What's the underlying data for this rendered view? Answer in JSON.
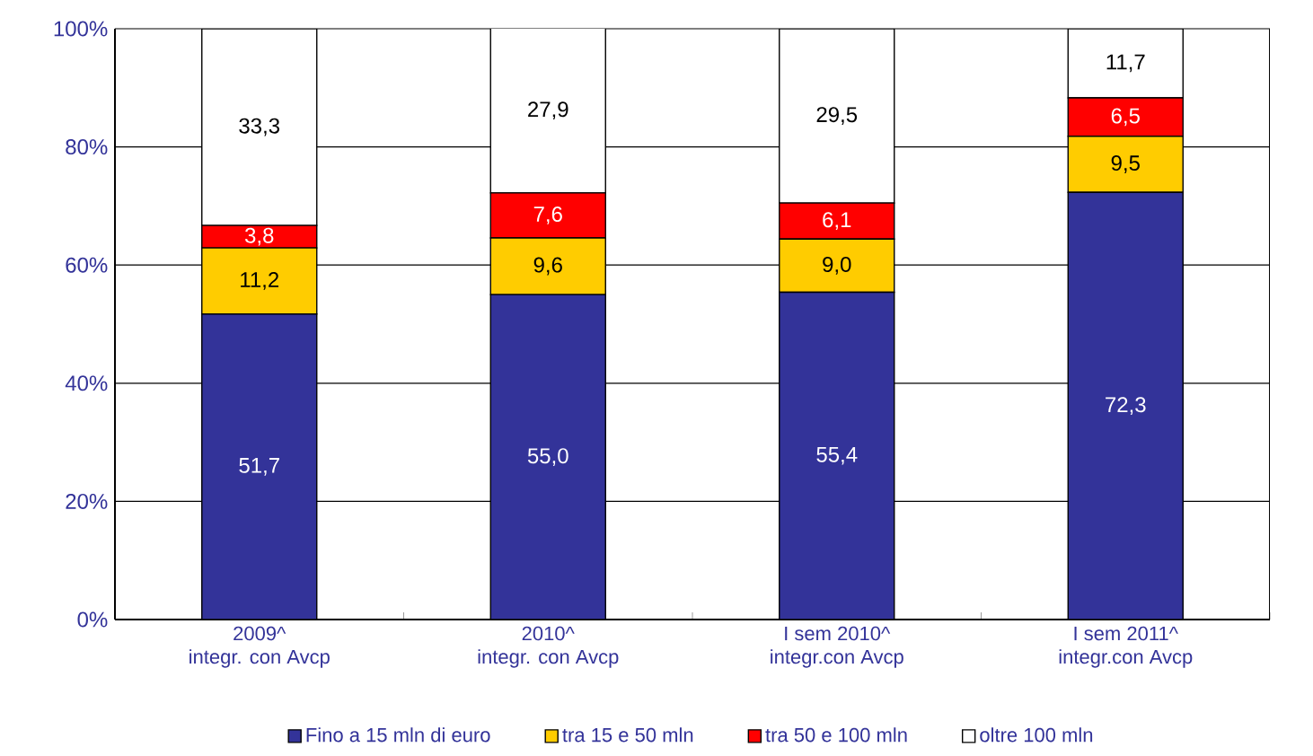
{
  "chart_data": {
    "type": "bar",
    "stacked": true,
    "categories": [
      "2009^\nintegr. con Avcp",
      "2010^\nintegr. con Avcp",
      "I sem 2010^\nintegr.con Avcp",
      "I sem 2011^\nintegr.con Avcp"
    ],
    "series": [
      {
        "name": "Fino a 15 mln di euro",
        "color": "#333399",
        "values": [
          51.7,
          55.0,
          55.4,
          72.3
        ],
        "value_labels": [
          "51,7",
          "55,0",
          "55,4",
          "72,3"
        ]
      },
      {
        "name": "tra 15 e 50 mln",
        "color": "#ffcc00",
        "values": [
          11.2,
          9.6,
          9.0,
          9.5
        ],
        "value_labels": [
          "11,2",
          "9,6",
          "9,0",
          "9,5"
        ]
      },
      {
        "name": "tra 50 e 100 mln",
        "color": "#ff0000",
        "values": [
          3.8,
          7.6,
          6.1,
          6.5
        ],
        "value_labels": [
          "3,8",
          "7,6",
          "6,1",
          "6,5"
        ]
      },
      {
        "name": "oltre 100 mln",
        "color": "#ffffff",
        "values": [
          33.3,
          27.9,
          29.5,
          11.7
        ],
        "value_labels": [
          "33,3",
          "27,9",
          "29,5",
          "11,7"
        ]
      }
    ],
    "ylim": [
      0,
      100
    ],
    "yticks": [
      {
        "value": 0,
        "label": "0%"
      },
      {
        "value": 20,
        "label": "20%"
      },
      {
        "value": 40,
        "label": "40%"
      },
      {
        "value": 60,
        "label": "60%"
      },
      {
        "value": 80,
        "label": "80%"
      },
      {
        "value": 100,
        "label": "100%"
      }
    ],
    "grid": "y",
    "legend": "bottom"
  }
}
